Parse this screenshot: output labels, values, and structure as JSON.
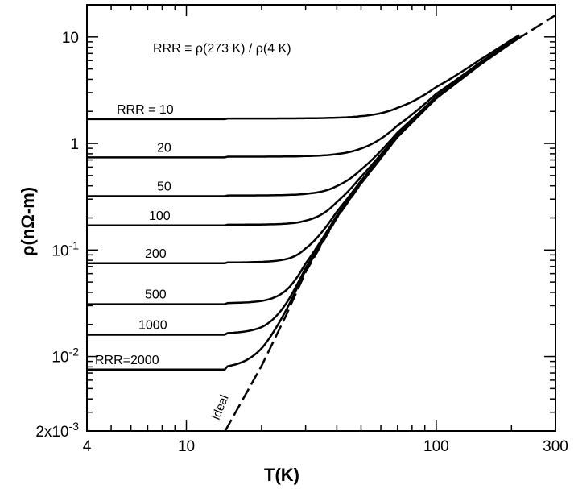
{
  "chart_data": {
    "type": "line",
    "xlabel": "T(K)",
    "ylabel": "ρ(nΩ-m)",
    "xscale": "log",
    "yscale": "log",
    "xlim": [
      4,
      300
    ],
    "ylim": [
      0.002,
      20
    ],
    "grid": false,
    "annotation": "RRR ≡ ρ(273 K) / ρ(4 K)",
    "x_tick_labels": [
      {
        "value": 4,
        "label": "4"
      },
      {
        "value": 10,
        "label": "10"
      },
      {
        "value": 100,
        "label": "100"
      },
      {
        "value": 300,
        "label": "300"
      }
    ],
    "y_tick_labels": [
      {
        "value": 0.002,
        "label": "2x10",
        "exp": "-3"
      },
      {
        "value": 0.01,
        "label": "10",
        "exp": "-2"
      },
      {
        "value": 0.1,
        "label": "10",
        "exp": "-1"
      },
      {
        "value": 1,
        "label": "1",
        "exp": ""
      },
      {
        "value": 10,
        "label": "10",
        "exp": ""
      }
    ],
    "ideal": {
      "name": "ideal",
      "style": "dashed",
      "points": [
        [
          14.3,
          0.002
        ],
        [
          20,
          0.0082
        ],
        [
          25,
          0.024
        ],
        [
          30,
          0.062
        ],
        [
          40,
          0.2
        ],
        [
          50,
          0.42
        ],
        [
          70,
          1.15
        ],
        [
          100,
          2.65
        ],
        [
          150,
          5.5
        ],
        [
          200,
          8.8
        ],
        [
          300,
          16.0
        ]
      ]
    },
    "series": [
      {
        "name": "RRR = 10",
        "label": "RRR = 10",
        "plateau": 1.69
      },
      {
        "name": "20",
        "label": "20",
        "plateau": 0.74
      },
      {
        "name": "50",
        "label": "50",
        "plateau": 0.32
      },
      {
        "name": "100",
        "label": "100",
        "plateau": 0.17
      },
      {
        "name": "200",
        "label": "200",
        "plateau": 0.075
      },
      {
        "name": "500",
        "label": "500",
        "plateau": 0.031
      },
      {
        "name": "1000",
        "label": "1000",
        "plateau": 0.016
      },
      {
        "name": "RRR=2000",
        "label": "RRR=2000",
        "plateau": 0.0075
      }
    ]
  }
}
